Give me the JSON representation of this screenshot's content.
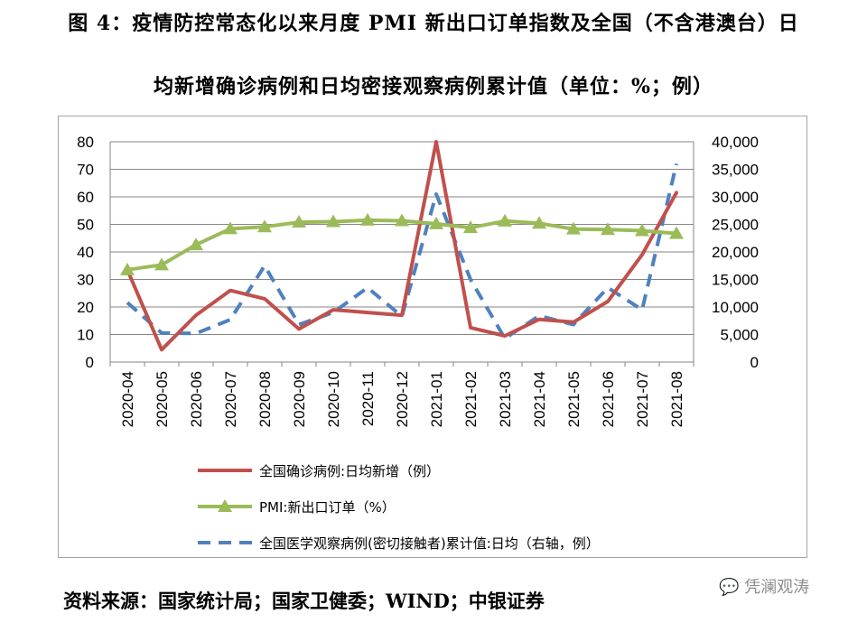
{
  "title_line1": "图 4：疫情防控常态化以来月度 PMI 新出口订单指数及全国（不含港澳台）日",
  "title_line2": "均新增确诊病例和日均密接观察病例累计值（单位：%；例）",
  "source": "资料来源：国家统计局；国家卫健委；WIND；中银证券",
  "watermark": "凭澜观涛",
  "chart_data": {
    "type": "line",
    "categories": [
      "2020-04",
      "2020-05",
      "2020-06",
      "2020-07",
      "2020-08",
      "2020-09",
      "2020-10",
      "2020-11",
      "2020-12",
      "2021-01",
      "2021-02",
      "2021-03",
      "2021-04",
      "2021-05",
      "2021-06",
      "2021-07",
      "2021-08"
    ],
    "left_axis": {
      "ylim": [
        0,
        80
      ],
      "ticks": [
        "0",
        "10",
        "20",
        "30",
        "40",
        "50",
        "60",
        "70",
        "80"
      ]
    },
    "right_axis": {
      "ylim": [
        0,
        40000
      ],
      "ticks": [
        "0",
        "5,000",
        "10,000",
        "15,000",
        "20,000",
        "25,000",
        "30,000",
        "35,000",
        "40,000"
      ]
    },
    "grid": true,
    "legend_position": "bottom",
    "series": [
      {
        "name": "全国确诊病例:日均新增（例）",
        "axis": "left",
        "color": "#c0504d",
        "style": "solid",
        "marker": "none",
        "values": [
          33.5,
          4.5,
          17,
          26,
          23,
          12,
          19,
          18,
          17,
          80,
          12.5,
          9.5,
          15.5,
          14.5,
          22,
          39,
          61.5
        ]
      },
      {
        "name": "PMI:新出口订单（%）",
        "axis": "left",
        "color": "#9bbb59",
        "style": "solid",
        "marker": "triangle",
        "values": [
          33.5,
          35.3,
          42.6,
          48.4,
          49.1,
          50.8,
          51,
          51.5,
          51.3,
          50.2,
          48.8,
          51.2,
          50.4,
          48.3,
          48.1,
          47.7,
          46.7
        ]
      },
      {
        "name": "全国医学观察病例(密切接触者)累计值:日均（右轴，例）",
        "axis": "right",
        "color": "#4f81bd",
        "style": "dashed",
        "marker": "none",
        "values": [
          10800,
          5300,
          5200,
          7700,
          17500,
          6800,
          9000,
          13500,
          8300,
          30500,
          15000,
          4300,
          8400,
          6800,
          13500,
          9500,
          36000
        ]
      }
    ]
  }
}
